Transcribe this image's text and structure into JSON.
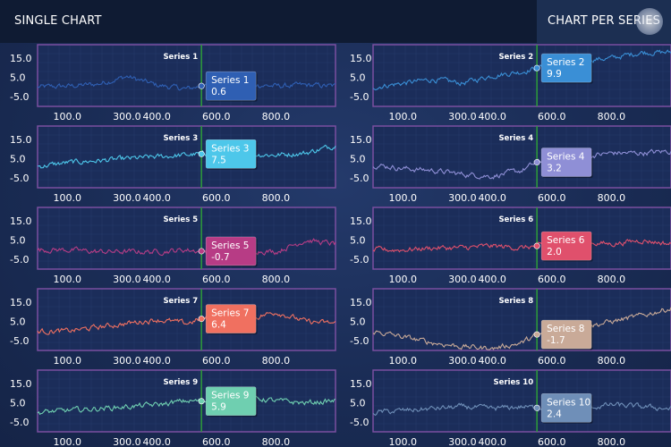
{
  "tabs": {
    "single": "SINGLE CHART",
    "per_series": "CHART PER SERIES",
    "active": "per_series"
  },
  "chart_data": {
    "type": "line",
    "layout": "grid 2 columns x 5 rows",
    "xlim": [
      0,
      1000
    ],
    "ylim": [
      -10,
      22
    ],
    "x_ticks": [
      "100.0",
      "300.0",
      "400.0",
      "600.0",
      "800.0"
    ],
    "y_ticks": [
      "15.0",
      "5.0",
      "-5.0"
    ],
    "cursor_x": 550,
    "series": [
      {
        "name": "Series 1",
        "color": "#2f5fb3",
        "tooltip_value": "0.6",
        "approx_points": [
          [
            0,
            0
          ],
          [
            100,
            0.5
          ],
          [
            200,
            1.5
          ],
          [
            300,
            5.5
          ],
          [
            400,
            1
          ],
          [
            500,
            -1
          ],
          [
            550,
            0.6
          ],
          [
            600,
            1
          ],
          [
            700,
            1.5
          ],
          [
            800,
            0.5
          ],
          [
            900,
            1
          ],
          [
            1000,
            0.5
          ]
        ]
      },
      {
        "name": "Series 2",
        "color": "#3a8fd6",
        "tooltip_value": "9.9",
        "approx_points": [
          [
            0,
            0
          ],
          [
            100,
            2
          ],
          [
            200,
            4
          ],
          [
            300,
            2
          ],
          [
            400,
            6
          ],
          [
            500,
            8
          ],
          [
            550,
            9.9
          ],
          [
            600,
            12
          ],
          [
            700,
            14
          ],
          [
            800,
            15
          ],
          [
            900,
            18
          ],
          [
            1000,
            18
          ]
        ]
      },
      {
        "name": "Series 3",
        "color": "#4dc7ea",
        "tooltip_value": "7.5",
        "approx_points": [
          [
            0,
            1
          ],
          [
            100,
            3
          ],
          [
            200,
            4
          ],
          [
            300,
            5
          ],
          [
            400,
            6
          ],
          [
            500,
            7
          ],
          [
            550,
            7.5
          ],
          [
            600,
            7
          ],
          [
            700,
            7.5
          ],
          [
            800,
            7
          ],
          [
            900,
            8
          ],
          [
            1000,
            12
          ]
        ]
      },
      {
        "name": "Series 4",
        "color": "#8f8fd6",
        "tooltip_value": "3.2",
        "approx_points": [
          [
            0,
            2
          ],
          [
            100,
            0
          ],
          [
            200,
            -1
          ],
          [
            300,
            -3
          ],
          [
            400,
            -4
          ],
          [
            500,
            -1
          ],
          [
            550,
            3.2
          ],
          [
            600,
            5
          ],
          [
            700,
            6
          ],
          [
            800,
            8
          ],
          [
            900,
            8
          ],
          [
            1000,
            9
          ]
        ]
      },
      {
        "name": "Series 5",
        "color": "#b73c85",
        "tooltip_value": "-0.7",
        "approx_points": [
          [
            0,
            0
          ],
          [
            100,
            0
          ],
          [
            200,
            -1
          ],
          [
            300,
            -1
          ],
          [
            400,
            -1
          ],
          [
            500,
            0
          ],
          [
            550,
            -0.7
          ],
          [
            600,
            -1
          ],
          [
            700,
            0
          ],
          [
            800,
            -1
          ],
          [
            900,
            5
          ],
          [
            1000,
            3
          ]
        ]
      },
      {
        "name": "Series 6",
        "color": "#e0506c",
        "tooltip_value": "2.0",
        "approx_points": [
          [
            0,
            0
          ],
          [
            100,
            0
          ],
          [
            200,
            1
          ],
          [
            300,
            1
          ],
          [
            400,
            2
          ],
          [
            500,
            1
          ],
          [
            550,
            2
          ],
          [
            600,
            3
          ],
          [
            700,
            4
          ],
          [
            800,
            3
          ],
          [
            900,
            5
          ],
          [
            1000,
            3
          ]
        ]
      },
      {
        "name": "Series 7",
        "color": "#f07060",
        "tooltip_value": "6.4",
        "approx_points": [
          [
            0,
            0
          ],
          [
            100,
            0
          ],
          [
            200,
            2
          ],
          [
            300,
            4
          ],
          [
            400,
            6
          ],
          [
            500,
            4
          ],
          [
            550,
            6.4
          ],
          [
            600,
            7
          ],
          [
            700,
            6
          ],
          [
            800,
            10
          ],
          [
            900,
            5
          ],
          [
            1000,
            4
          ]
        ]
      },
      {
        "name": "Series 8",
        "color": "#c9aa98",
        "tooltip_value": "-1.7",
        "approx_points": [
          [
            0,
            0
          ],
          [
            100,
            -3
          ],
          [
            200,
            -6
          ],
          [
            300,
            -8
          ],
          [
            400,
            -9
          ],
          [
            500,
            -6
          ],
          [
            550,
            -1.7
          ],
          [
            600,
            -2
          ],
          [
            700,
            2
          ],
          [
            800,
            5
          ],
          [
            900,
            8
          ],
          [
            1000,
            12
          ]
        ]
      },
      {
        "name": "Series 9",
        "color": "#6fcfb0",
        "tooltip_value": "5.9",
        "approx_points": [
          [
            0,
            0
          ],
          [
            100,
            1
          ],
          [
            200,
            2
          ],
          [
            300,
            3
          ],
          [
            400,
            4
          ],
          [
            500,
            6
          ],
          [
            550,
            5.9
          ],
          [
            600,
            6
          ],
          [
            700,
            8
          ],
          [
            800,
            6
          ],
          [
            900,
            5
          ],
          [
            1000,
            6
          ]
        ]
      },
      {
        "name": "Series 10",
        "color": "#6f8fb8",
        "tooltip_value": "2.4",
        "approx_points": [
          [
            0,
            0
          ],
          [
            100,
            1
          ],
          [
            200,
            2
          ],
          [
            300,
            3
          ],
          [
            400,
            2
          ],
          [
            500,
            3
          ],
          [
            550,
            2.4
          ],
          [
            600,
            3
          ],
          [
            700,
            2
          ],
          [
            800,
            4
          ],
          [
            900,
            3
          ],
          [
            1000,
            2
          ]
        ]
      }
    ]
  }
}
